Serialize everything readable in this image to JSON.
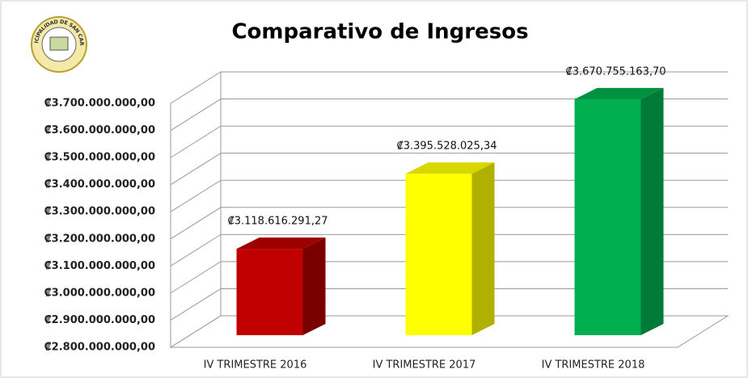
{
  "chart_data": {
    "type": "bar3d",
    "title": "Comparativo de Ingresos",
    "logo_text": "MUNICIPALIDAD DE SAN CARLOS",
    "categories": [
      "IV TRIMESTRE 2016",
      "IV TRIMESTRE 2017",
      "IV TRIMESTRE 2018"
    ],
    "values": [
      3118616291.27,
      3395528025.34,
      3670755163.7
    ],
    "value_labels": [
      "₡3.118.616.291,27",
      "₡3.395.528.025,34",
      "₡3.670.755.163,70"
    ],
    "colors": [
      "#c00000",
      "#ffff00",
      "#00b050"
    ],
    "side_colors": [
      "#7a0000",
      "#b0b000",
      "#007a37"
    ],
    "top_colors": [
      "#9e0000",
      "#d8d800",
      "#00913f"
    ],
    "ylim": [
      2800000000,
      3700000000
    ],
    "yticks": [
      {
        "value": 2800000000,
        "label": "₡2.800.000.000,00"
      },
      {
        "value": 2900000000,
        "label": "₡2.900.000.000,00"
      },
      {
        "value": 3000000000,
        "label": "₡3.000.000.000,00"
      },
      {
        "value": 3100000000,
        "label": "₡3.100.000.000,00"
      },
      {
        "value": 3200000000,
        "label": "₡3.200.000.000,00"
      },
      {
        "value": 3300000000,
        "label": "₡3.300.000.000,00"
      },
      {
        "value": 3400000000,
        "label": "₡3.400.000.000,00"
      },
      {
        "value": 3500000000,
        "label": "₡3.500.000.000,00"
      },
      {
        "value": 3600000000,
        "label": "₡3.600.000.000,00"
      },
      {
        "value": 3700000000,
        "label": "₡3.700.000.000,00"
      }
    ],
    "grid": true
  }
}
